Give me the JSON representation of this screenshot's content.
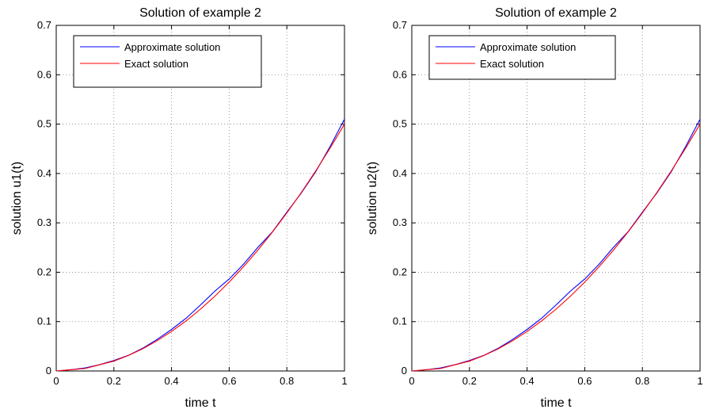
{
  "colors": {
    "approximate": "#0000ff",
    "exact": "#ff0000",
    "grid": "#808080",
    "axes": "#000000"
  },
  "chart_data": [
    {
      "type": "line",
      "title": "Solution of example 2",
      "xlabel": "time t",
      "ylabel": "solution u1(t)",
      "xlim": [
        0,
        1
      ],
      "ylim": [
        0,
        0.7
      ],
      "xticks": [
        "0",
        "0.2",
        "0.4",
        "0.6",
        "0.8",
        "1"
      ],
      "yticks": [
        "0",
        "0.1",
        "0.2",
        "0.3",
        "0.4",
        "0.5",
        "0.6",
        "0.7"
      ],
      "grid": true,
      "legend_position": "top-left",
      "x": [
        0,
        0.05,
        0.1,
        0.15,
        0.2,
        0.25,
        0.3,
        0.35,
        0.4,
        0.45,
        0.5,
        0.55,
        0.6,
        0.65,
        0.7,
        0.75,
        0.8,
        0.85,
        0.9,
        0.95,
        1.0
      ],
      "series": [
        {
          "name": "Approximate solution",
          "color": "#0000ff",
          "values": [
            0,
            0.0026,
            0.0061,
            0.0128,
            0.0213,
            0.0316,
            0.0461,
            0.0639,
            0.0841,
            0.1066,
            0.1334,
            0.1616,
            0.1863,
            0.2164,
            0.2506,
            0.2818,
            0.3215,
            0.3603,
            0.4035,
            0.4545,
            0.51
          ]
        },
        {
          "name": "Exact solution",
          "color": "#ff0000",
          "values": [
            0,
            0.0025,
            0.005,
            0.0125,
            0.02,
            0.0313,
            0.045,
            0.0613,
            0.08,
            0.1013,
            0.125,
            0.1513,
            0.18,
            0.2113,
            0.245,
            0.2813,
            0.32,
            0.3613,
            0.405,
            0.4513,
            0.5
          ]
        }
      ]
    },
    {
      "type": "line",
      "title": "Solution of example 2",
      "xlabel": "time t",
      "ylabel": "solution u2(t)",
      "xlim": [
        0,
        1
      ],
      "ylim": [
        0,
        0.7
      ],
      "xticks": [
        "0",
        "0.2",
        "0.4",
        "0.6",
        "0.8",
        "1"
      ],
      "yticks": [
        "0",
        "0.1",
        "0.2",
        "0.3",
        "0.4",
        "0.5",
        "0.6",
        "0.7"
      ],
      "grid": true,
      "legend_position": "top-left",
      "x": [
        0,
        0.05,
        0.1,
        0.15,
        0.2,
        0.25,
        0.3,
        0.35,
        0.4,
        0.45,
        0.5,
        0.55,
        0.6,
        0.65,
        0.7,
        0.75,
        0.8,
        0.85,
        0.9,
        0.95,
        1.0
      ],
      "series": [
        {
          "name": "Approximate solution",
          "color": "#0000ff",
          "values": [
            0,
            0.0026,
            0.0061,
            0.0128,
            0.0213,
            0.0316,
            0.0461,
            0.0639,
            0.0841,
            0.1066,
            0.1334,
            0.1616,
            0.1863,
            0.2164,
            0.2506,
            0.2818,
            0.3215,
            0.3603,
            0.4035,
            0.4545,
            0.51
          ]
        },
        {
          "name": "Exact solution",
          "color": "#ff0000",
          "values": [
            0,
            0.0025,
            0.005,
            0.0125,
            0.02,
            0.0313,
            0.045,
            0.0613,
            0.08,
            0.1013,
            0.125,
            0.1513,
            0.18,
            0.2113,
            0.245,
            0.2813,
            0.32,
            0.3613,
            0.405,
            0.4513,
            0.5
          ]
        }
      ]
    }
  ]
}
